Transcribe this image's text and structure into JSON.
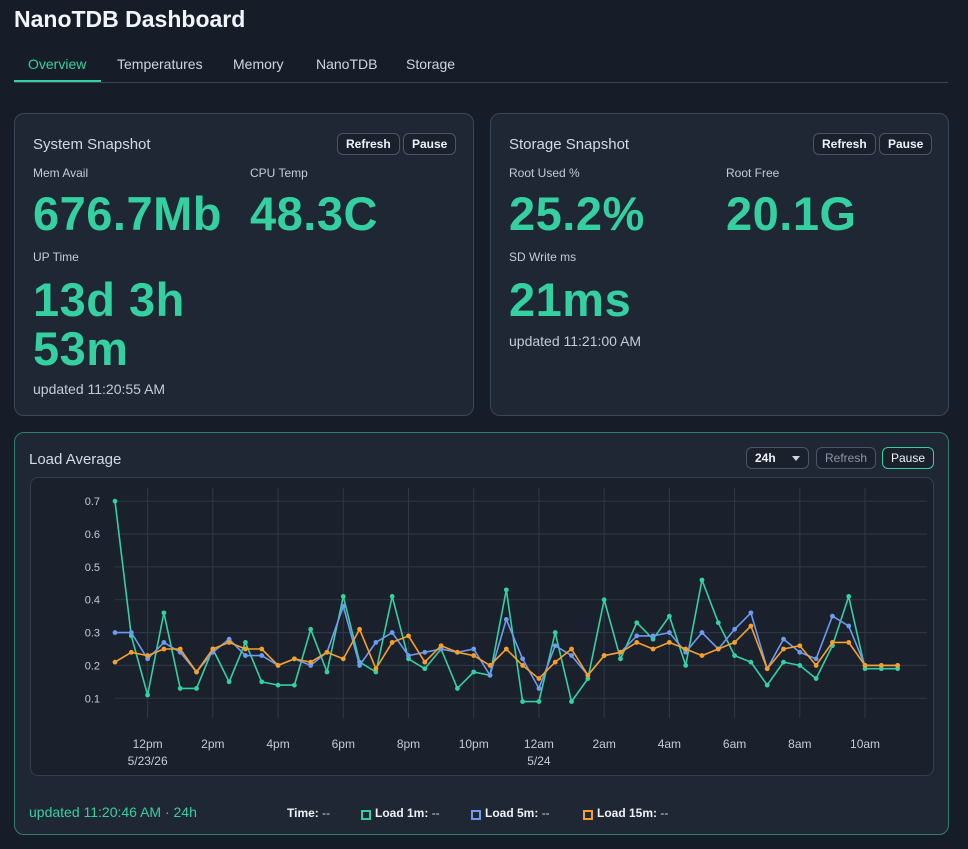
{
  "app": {
    "title": "NanoTDB Dashboard"
  },
  "tabs": [
    {
      "label": "Overview",
      "active": true
    },
    {
      "label": "Temperatures"
    },
    {
      "label": "Memory"
    },
    {
      "label": "NanoTDB"
    },
    {
      "label": "Storage"
    }
  ],
  "system": {
    "title": "System Snapshot",
    "refresh": "Refresh",
    "pause": "Pause",
    "mem_label": "Mem Avail",
    "mem_value": "676.7Mb",
    "cpu_label": "CPU Temp",
    "cpu_value": "48.3C",
    "uptime_label": "UP Time",
    "uptime_line1": "13d 3h",
    "uptime_line2": "53m",
    "updated": "updated 11:20:55 AM"
  },
  "storage": {
    "title": "Storage Snapshot",
    "refresh": "Refresh",
    "pause": "Pause",
    "root_used_label": "Root Used %",
    "root_used_value": "25.2%",
    "root_free_label": "Root Free",
    "root_free_value": "20.1G",
    "sd_write_label": "SD Write ms",
    "sd_write_value": "21ms",
    "updated": "updated 11:21:00 AM"
  },
  "load": {
    "title": "Load Average",
    "range": "24h",
    "refresh": "Refresh",
    "pause": "Pause",
    "updated": "updated 11:20:46 AM · 24h",
    "legend": {
      "time_label": "Time:",
      "time_value": "--",
      "load1_label": "Load 1m:",
      "load1_value": "--",
      "load5_label": "Load 5m:",
      "load5_value": "--",
      "load15_label": "Load 15m:",
      "load15_value": "--"
    },
    "colors": {
      "load1": "#35d0a0",
      "load5": "#6e9af0",
      "load15": "#f4a02a",
      "grid": "#2f3947",
      "axis_text": "#c4ccd7"
    }
  },
  "chart_data": {
    "type": "line",
    "title": "Load Average",
    "xlabel": "",
    "ylabel": "",
    "ylim": [
      0.04,
      0.74
    ],
    "yticks": [
      0.1,
      0.2,
      0.3,
      0.4,
      0.5,
      0.6,
      0.7
    ],
    "xrange": [
      11.0,
      35.9
    ],
    "xticks": [
      {
        "x": 12,
        "label": "12pm",
        "sub": "5/23/26"
      },
      {
        "x": 14,
        "label": "2pm"
      },
      {
        "x": 16,
        "label": "4pm"
      },
      {
        "x": 18,
        "label": "6pm"
      },
      {
        "x": 20,
        "label": "8pm"
      },
      {
        "x": 22,
        "label": "10pm"
      },
      {
        "x": 24,
        "label": "12am",
        "sub": "5/24"
      },
      {
        "x": 26,
        "label": "2am"
      },
      {
        "x": 28,
        "label": "4am"
      },
      {
        "x": 30,
        "label": "6am"
      },
      {
        "x": 32,
        "label": "8am"
      },
      {
        "x": 34,
        "label": "10am"
      }
    ],
    "grid": true,
    "x": [
      11.0,
      11.5,
      12.0,
      12.5,
      13.0,
      13.5,
      14.0,
      14.5,
      15.0,
      15.5,
      16.0,
      16.5,
      17.0,
      17.5,
      18.0,
      18.5,
      19.0,
      19.5,
      20.0,
      20.5,
      21.0,
      21.5,
      22.0,
      22.5,
      23.0,
      23.5,
      24.0,
      24.5,
      25.0,
      25.5,
      26.0,
      26.5,
      27.0,
      27.5,
      28.0,
      28.5,
      29.0,
      29.5,
      30.0,
      30.5,
      31.0,
      31.5,
      32.0,
      32.5,
      33.0,
      33.5,
      34.0,
      34.5,
      35.0
    ],
    "series": [
      {
        "name": "Load 1m",
        "color": "#35d0a0",
        "values": [
          0.7,
          0.29,
          0.11,
          0.36,
          0.13,
          0.13,
          0.25,
          0.15,
          0.27,
          0.15,
          0.14,
          0.14,
          0.31,
          0.18,
          0.41,
          0.21,
          0.18,
          0.41,
          0.22,
          0.19,
          0.25,
          0.13,
          0.18,
          0.17,
          0.43,
          0.09,
          0.09,
          0.3,
          0.09,
          0.16,
          0.4,
          0.22,
          0.33,
          0.28,
          0.35,
          0.2,
          0.46,
          0.33,
          0.23,
          0.21,
          0.14,
          0.21,
          0.2,
          0.16,
          0.26,
          0.41,
          0.19,
          0.19,
          0.19
        ]
      },
      {
        "name": "Load 5m",
        "color": "#6e9af0",
        "values": [
          0.3,
          0.3,
          0.22,
          0.27,
          0.24,
          0.18,
          0.24,
          0.28,
          0.23,
          0.23,
          0.2,
          0.22,
          0.2,
          0.24,
          0.38,
          0.2,
          0.27,
          0.3,
          0.23,
          0.24,
          0.25,
          0.24,
          0.25,
          0.17,
          0.34,
          0.22,
          0.13,
          0.26,
          0.23,
          0.17,
          0.23,
          0.24,
          0.29,
          0.29,
          0.3,
          0.24,
          0.3,
          0.25,
          0.31,
          0.36,
          0.19,
          0.28,
          0.24,
          0.22,
          0.35,
          0.32,
          0.2,
          0.2,
          0.2
        ]
      },
      {
        "name": "Load 15m",
        "color": "#f4a02a",
        "values": [
          0.21,
          0.24,
          0.23,
          0.25,
          0.25,
          0.18,
          0.25,
          0.27,
          0.25,
          0.25,
          0.2,
          0.22,
          0.21,
          0.24,
          0.22,
          0.31,
          0.19,
          0.27,
          0.29,
          0.21,
          0.26,
          0.24,
          0.23,
          0.2,
          0.25,
          0.2,
          0.16,
          0.21,
          0.25,
          0.17,
          0.23,
          0.24,
          0.27,
          0.25,
          0.27,
          0.25,
          0.23,
          0.25,
          0.27,
          0.32,
          0.19,
          0.25,
          0.26,
          0.2,
          0.27,
          0.27,
          0.2,
          0.2,
          0.2
        ]
      }
    ]
  }
}
